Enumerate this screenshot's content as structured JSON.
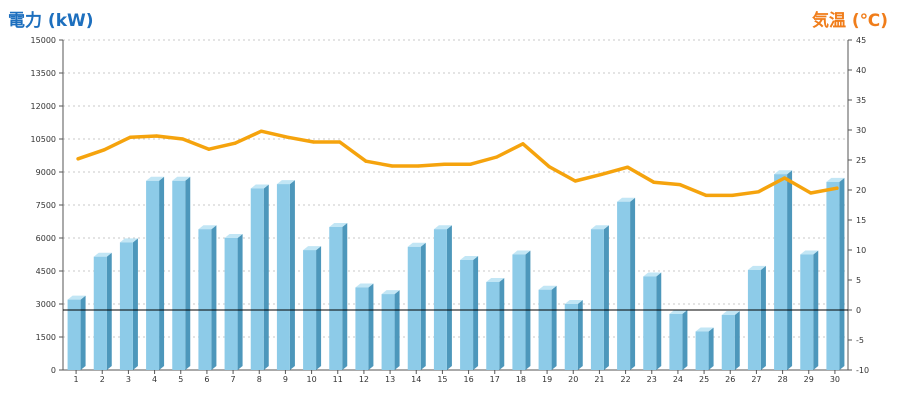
{
  "colors": {
    "bar_front": "#8dcbe8",
    "bar_top": "#c2e6f5",
    "bar_side": "#4d97bb",
    "line": "#f5a30d",
    "left_title": "#1d6fbe",
    "right_title": "#f07d1a",
    "grid": "#c8c8c8",
    "axis": "#555555",
    "zero_line": "#000000"
  },
  "chart_data": {
    "type": "bar",
    "categories": [
      "1",
      "2",
      "3",
      "4",
      "5",
      "6",
      "7",
      "8",
      "9",
      "10",
      "11",
      "12",
      "13",
      "14",
      "15",
      "16",
      "17",
      "18",
      "19",
      "20",
      "21",
      "22",
      "23",
      "24",
      "25",
      "26",
      "27",
      "28",
      "29",
      "30"
    ],
    "series": [
      {
        "axis": "left",
        "type": "bar",
        "values": [
          3200,
          5150,
          5800,
          8600,
          8600,
          6400,
          6000,
          8250,
          8450,
          5450,
          6500,
          3750,
          3450,
          5600,
          6400,
          5000,
          4000,
          5250,
          3650,
          3000,
          6400,
          7650,
          4250,
          2550,
          1750,
          2500,
          4550,
          8900,
          5250,
          8550
        ]
      },
      {
        "axis": "right",
        "type": "line",
        "values": [
          25.2,
          26.7,
          28.8,
          29.0,
          28.5,
          26.8,
          27.8,
          29.8,
          28.8,
          28.0,
          28.0,
          24.8,
          24.0,
          24.0,
          24.3,
          24.3,
          25.5,
          27.7,
          23.9,
          21.5,
          22.6,
          23.8,
          21.3,
          20.9,
          19.1,
          19.1,
          19.7,
          22.0,
          19.5,
          20.3
        ]
      }
    ],
    "y_left": {
      "title": "電力 (kW)",
      "min": 0,
      "max": 15000,
      "ticks": [
        "0",
        "1500",
        "3000",
        "4500",
        "6000",
        "7500",
        "9000",
        "10500",
        "12000",
        "13500",
        "15000"
      ]
    },
    "y_right": {
      "title": "気温 (℃)",
      "min": -10,
      "max": 45,
      "ticks": [
        "-10",
        "-5",
        "0",
        "5",
        "10",
        "15",
        "20",
        "25",
        "30",
        "35",
        "40",
        "45"
      ]
    },
    "grid": true,
    "legend": "none"
  }
}
